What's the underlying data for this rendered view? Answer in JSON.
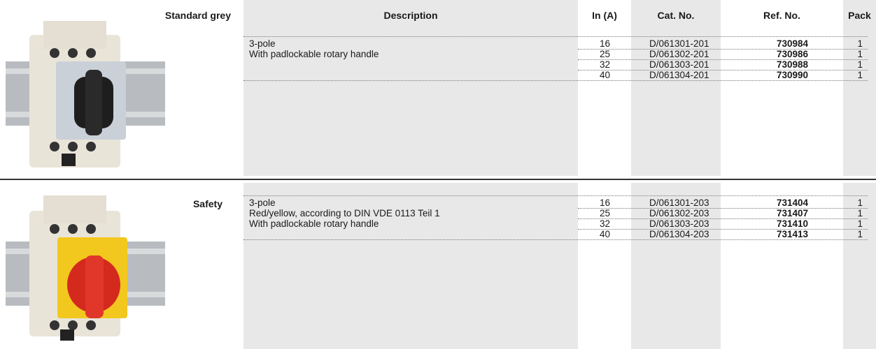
{
  "header": {
    "columns": [
      "Description",
      "In (A)",
      "Cat. No.",
      "Ref. No.",
      "Pack"
    ]
  },
  "sections": [
    {
      "title": "Standard grey",
      "description": [
        "3-pole",
        "With padlockable rotary handle"
      ],
      "rows": [
        [
          16,
          "D/061301-201",
          "730984",
          1
        ],
        [
          25,
          "D/061302-201",
          "730986",
          1
        ],
        [
          32,
          "D/061303-201",
          "730988",
          1
        ],
        [
          40,
          "D/061304-201",
          "730990",
          1
        ]
      ]
    },
    {
      "title": "Safety",
      "description": [
        "3-pole",
        "Red/yellow, according to DIN VDE 0113 Teil 1",
        "With padlockable rotary handle"
      ],
      "rows": [
        [
          16,
          "D/061301-203",
          "731404",
          1
        ],
        [
          25,
          "D/061302-203",
          "731407",
          1
        ],
        [
          32,
          "D/061303-203",
          "731410",
          1
        ],
        [
          40,
          "D/061304-203",
          "731413",
          1
        ]
      ]
    }
  ]
}
